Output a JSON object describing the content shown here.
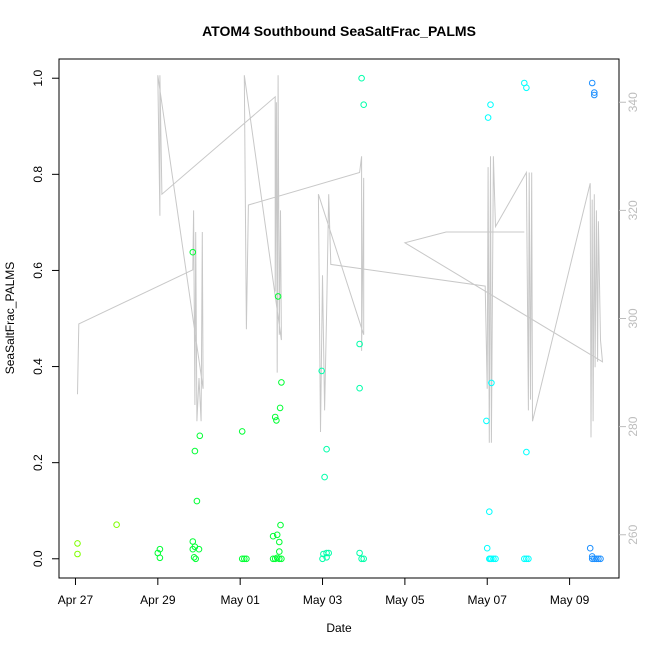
{
  "chart_data": {
    "type": "scatter",
    "title": "ATOM4 Southbound SeaSaltFrac_PALMS",
    "xlabel": "Date",
    "ylabel": "SeaSaltFrac_PALMS",
    "x_ticks": [
      "Apr 27",
      "Apr 29",
      "May 01",
      "May 03",
      "May 05",
      "May 07",
      "May 09"
    ],
    "x_tick_days": [
      0,
      2,
      4,
      6,
      8,
      10,
      12
    ],
    "xlim_days": [
      -0.4,
      13.2
    ],
    "y_ticks": [
      "0.0",
      "0.2",
      "0.4",
      "0.6",
      "0.8",
      "1.0"
    ],
    "y_tick_values": [
      0,
      0.2,
      0.4,
      0.6,
      0.8,
      1.0
    ],
    "ylim": [
      -0.04,
      1.04
    ],
    "y2_ticks": [
      "260",
      "280",
      "300",
      "320",
      "340"
    ],
    "y2_tick_values": [
      260,
      280,
      300,
      320,
      340
    ],
    "y2lim": [
      252,
      348
    ],
    "grid": false,
    "series": [
      {
        "color": "#7fff00",
        "points": [
          [
            0.05,
            0.032
          ],
          [
            0.05,
            0.01
          ],
          [
            1.0,
            0.071
          ]
        ]
      },
      {
        "color": "#00ff33",
        "points": [
          [
            2.0,
            0.012
          ],
          [
            2.05,
            0.02
          ],
          [
            2.05,
            0.002
          ],
          [
            2.85,
            0.638
          ],
          [
            2.85,
            0.036
          ],
          [
            2.85,
            0.02
          ],
          [
            2.88,
            0.003
          ],
          [
            2.9,
            0.224
          ],
          [
            2.9,
            0.025
          ],
          [
            2.92,
            0.0
          ],
          [
            2.95,
            0.12
          ],
          [
            3.0,
            0.02
          ],
          [
            3.02,
            0.256
          ],
          [
            4.05,
            0.265
          ],
          [
            4.05,
            0.0
          ],
          [
            4.1,
            0.0
          ],
          [
            4.15,
            0.0
          ],
          [
            4.8,
            0.047
          ],
          [
            4.8,
            0.0
          ],
          [
            4.85,
            0.295
          ],
          [
            4.85,
            0.0
          ],
          [
            4.88,
            0.288
          ],
          [
            4.9,
            0.05
          ],
          [
            4.9,
            0.002
          ],
          [
            4.92,
            0.546
          ],
          [
            4.95,
            0.015
          ],
          [
            4.95,
            0.0
          ],
          [
            4.95,
            0.035
          ],
          [
            4.97,
            0.314
          ],
          [
            4.98,
            0.07
          ],
          [
            5.0,
            0.367
          ],
          [
            5.0,
            0.0
          ]
        ]
      },
      {
        "color": "#00ffaa",
        "points": [
          [
            5.98,
            0.391
          ],
          [
            6.0,
            0.0
          ],
          [
            6.02,
            0.01
          ],
          [
            6.05,
            0.17
          ],
          [
            6.1,
            0.228
          ],
          [
            6.1,
            0.012
          ],
          [
            6.1,
            0.003
          ],
          [
            6.15,
            0.012
          ],
          [
            6.9,
            0.447
          ],
          [
            6.9,
            0.355
          ],
          [
            6.9,
            0.012
          ],
          [
            6.95,
            1.0
          ],
          [
            6.95,
            0.0
          ],
          [
            7.0,
            0.945
          ],
          [
            7.0,
            0.0
          ]
        ]
      },
      {
        "color": "#00ffff",
        "points": [
          [
            10.05,
            0.098
          ],
          [
            10.05,
            0.0
          ],
          [
            10.07,
            0.0
          ],
          [
            10.1,
            0.366
          ],
          [
            10.1,
            0.0
          ],
          [
            10.15,
            0.0
          ],
          [
            10.2,
            0.0
          ],
          [
            9.98,
            0.287
          ],
          [
            10.0,
            0.022
          ],
          [
            10.02,
            0.918
          ],
          [
            10.08,
            0.945
          ],
          [
            10.9,
            0.99
          ],
          [
            10.95,
            0.98
          ],
          [
            10.95,
            0.222
          ],
          [
            10.9,
            0.0
          ],
          [
            10.95,
            0.0
          ],
          [
            11.0,
            0.0
          ]
        ]
      },
      {
        "color": "#1e90ff",
        "points": [
          [
            12.55,
            0.99
          ],
          [
            12.6,
            0.97
          ],
          [
            12.6,
            0.965
          ],
          [
            12.5,
            0.022
          ],
          [
            12.55,
            0.005
          ],
          [
            12.55,
            0.0
          ],
          [
            12.6,
            0.0
          ],
          [
            12.65,
            0.0
          ],
          [
            12.7,
            0.0
          ],
          [
            12.75,
            0.0
          ]
        ]
      }
    ],
    "secondary_line": {
      "color": "#c8c8c8",
      "points": [
        [
          0.05,
          286
        ],
        [
          0.08,
          299
        ],
        [
          2.85,
          309
        ],
        [
          2.87,
          320
        ],
        [
          2.9,
          284
        ],
        [
          2.92,
          316
        ],
        [
          2.95,
          281
        ],
        [
          3.0,
          289
        ],
        [
          3.05,
          281
        ],
        [
          3.08,
          316
        ],
        [
          3.1,
          287
        ],
        [
          2.0,
          345
        ],
        [
          2.05,
          319
        ],
        [
          2.05,
          345
        ],
        [
          2.1,
          323
        ],
        [
          4.85,
          341
        ],
        [
          4.85,
          305
        ],
        [
          4.88,
          340
        ],
        [
          4.9,
          290
        ],
        [
          4.92,
          345
        ],
        [
          4.95,
          297
        ],
        [
          4.98,
          320
        ],
        [
          5.0,
          296
        ],
        [
          4.1,
          345
        ],
        [
          4.15,
          298
        ],
        [
          4.2,
          321
        ],
        [
          6.9,
          327
        ],
        [
          6.95,
          330
        ],
        [
          6.95,
          294
        ],
        [
          7.0,
          326
        ],
        [
          7.0,
          297
        ],
        [
          5.9,
          323
        ],
        [
          5.95,
          279
        ],
        [
          6.0,
          308
        ],
        [
          6.05,
          283
        ],
        [
          6.1,
          301
        ],
        [
          6.15,
          323
        ],
        [
          6.2,
          310
        ],
        [
          9.95,
          306
        ],
        [
          10.0,
          287
        ],
        [
          10.02,
          328
        ],
        [
          10.05,
          277
        ],
        [
          10.08,
          330
        ],
        [
          10.1,
          277
        ],
        [
          10.15,
          330
        ],
        [
          10.2,
          317
        ],
        [
          10.95,
          327
        ],
        [
          11.0,
          283
        ],
        [
          11.02,
          327
        ],
        [
          11.05,
          285
        ],
        [
          11.08,
          327
        ],
        [
          11.1,
          281
        ],
        [
          12.5,
          325
        ],
        [
          12.52,
          278
        ],
        [
          12.55,
          322
        ],
        [
          12.57,
          281
        ],
        [
          12.6,
          323
        ],
        [
          12.62,
          291
        ],
        [
          12.65,
          320
        ],
        [
          12.68,
          292
        ],
        [
          12.7,
          318
        ],
        [
          12.75,
          296
        ],
        [
          12.8,
          292
        ],
        [
          8.0,
          314
        ],
        [
          9.0,
          316
        ],
        [
          10.9,
          316
        ]
      ]
    }
  }
}
